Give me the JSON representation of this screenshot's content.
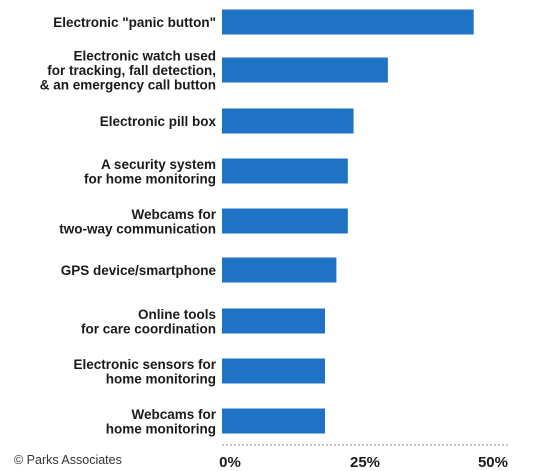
{
  "source": "© Parks Associates",
  "colors": {
    "bar": "#1f72c4",
    "axis": "#888888",
    "text": "#1a1a1a"
  },
  "chart_data": {
    "type": "bar",
    "orientation": "horizontal",
    "categories": [
      [
        "Electronic \"panic button\""
      ],
      [
        "Electronic watch used",
        "for tracking, fall detection,",
        "& an emergency call button"
      ],
      [
        "Electronic pill box"
      ],
      [
        "A security system",
        "for home monitoring"
      ],
      [
        "Webcams for",
        "two-way communication"
      ],
      [
        "GPS device/smartphone"
      ],
      [
        "Online tools",
        "for care coordination"
      ],
      [
        "Electronic sensors for",
        "home monitoring"
      ],
      [
        "Webcams for",
        "home monitoring"
      ]
    ],
    "values": [
      44,
      29,
      23,
      22,
      22,
      20,
      18,
      18,
      18
    ],
    "xlim": [
      0,
      50
    ],
    "xticks": [
      0,
      25,
      50
    ],
    "xtick_labels": [
      "0%",
      "25%",
      "50%"
    ],
    "grid": false,
    "legend": "none"
  }
}
